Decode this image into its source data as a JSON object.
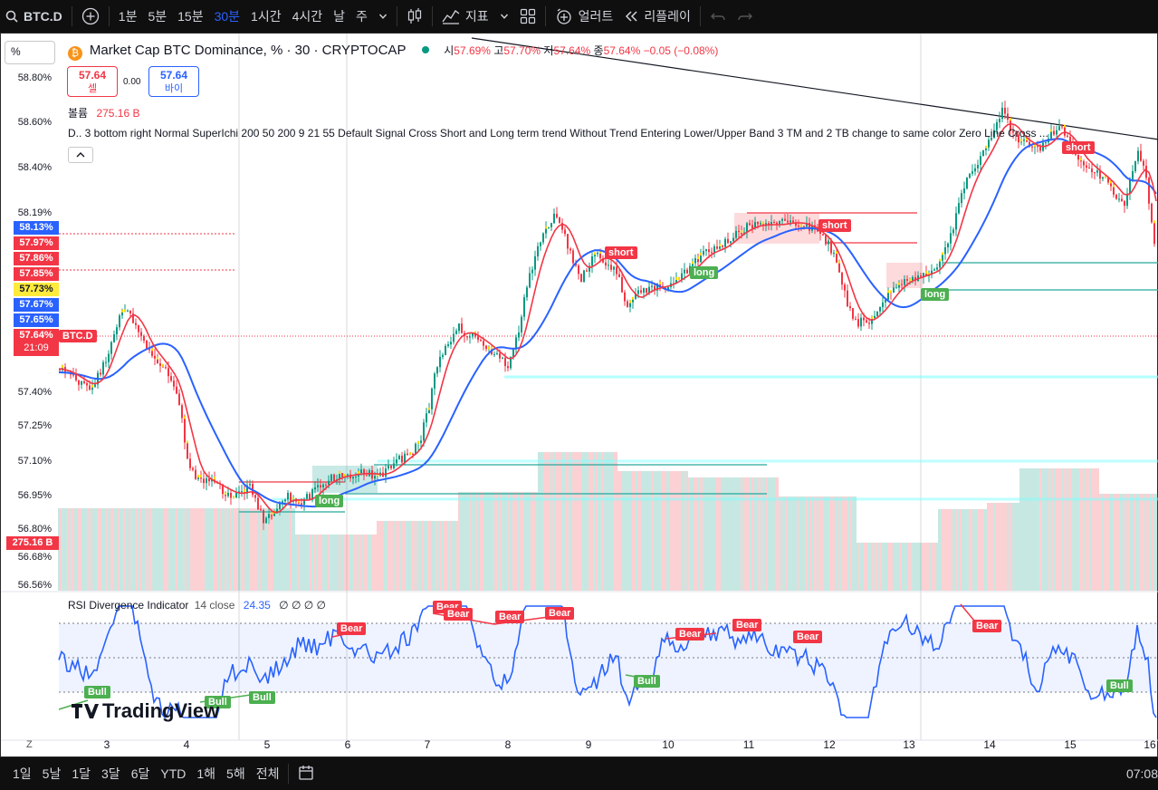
{
  "toolbar": {
    "symbol": "BTC.D",
    "intervals": [
      "1분",
      "5분",
      "15분",
      "30분",
      "1시간",
      "4시간",
      "날",
      "주"
    ],
    "active_interval": "30분",
    "indicators_label": "지표",
    "alert_label": "얼러트",
    "replay_label": "리플레이"
  },
  "legend": {
    "title": "Market Cap BTC Dominance, % · 30 · CRYPTOCAP",
    "open_label": "시",
    "open_value": "57.69%",
    "high_label": "고",
    "high_value": "57.70%",
    "low_label": "저",
    "low_value": "57.64%",
    "close_label": "종",
    "close_value": "57.64%",
    "change": "−0.05 (−0.08%)",
    "sell_price": "57.64",
    "sell_label": "셀",
    "spread": "0.00",
    "buy_price": "57.64",
    "buy_label": "바이",
    "volume_label": "볼륨",
    "volume_value": "275.16 B",
    "indicator_line": "D.. 3 bottom right Normal SuperIchi 200 50 200 9 21 55 Default Signal Cross Short and Long term trend Without Trend Entering Lower/Upper Band 3 TM and 2 TB change to same color Zero Line Cross ...",
    "symbol_search": "%"
  },
  "price_axis": {
    "ticks": [
      "58.80%",
      "58.60%",
      "58.40%",
      "58.19%",
      "57.40%",
      "57.25%",
      "57.10%",
      "56.95%",
      "56.80%",
      "56.68%",
      "56.56%"
    ],
    "tags": [
      {
        "label": "58.13%",
        "color": "#2962ff"
      },
      {
        "label": "57.97%",
        "color": "#f23645"
      },
      {
        "label": "57.86%",
        "color": "#f23645"
      },
      {
        "label": "57.85%",
        "color": "#f23645"
      },
      {
        "label": "57.73%",
        "color": "#ffeb3b"
      },
      {
        "label": "57.67%",
        "color": "#2962ff"
      },
      {
        "label": "57.65%",
        "color": "#2962ff"
      },
      {
        "label": "57.64%",
        "color": "#f23645"
      }
    ],
    "current_symbol": "BTC.D",
    "countdown": "21:09",
    "volume_tag": "275.16 B"
  },
  "signals": [
    {
      "label": "short",
      "kind": "short"
    },
    {
      "label": "long",
      "kind": "long"
    },
    {
      "label": "short",
      "kind": "short"
    },
    {
      "label": "long",
      "kind": "long"
    },
    {
      "label": "long",
      "kind": "long"
    },
    {
      "label": "short",
      "kind": "short"
    }
  ],
  "rsi": {
    "title": "RSI Divergence Indicator",
    "params": "14 close",
    "value": "24.35",
    "empties": "∅ ∅ ∅ ∅",
    "bear_labels": [
      "Bear",
      "Bear",
      "Bear",
      "Bear",
      "Bear",
      "Bear",
      "Bear",
      "Bear",
      "Bear",
      "Bear"
    ],
    "bull_labels": [
      "Bull",
      "Bull",
      "Bull",
      "Bull",
      "Bull"
    ]
  },
  "time_axis": {
    "ticks": [
      "3",
      "4",
      "5",
      "6",
      "7",
      "8",
      "9",
      "10",
      "11",
      "12",
      "13",
      "14",
      "15",
      "16"
    ]
  },
  "watermark": "TradingView",
  "bottom": {
    "ranges": [
      "1일",
      "5날",
      "1달",
      "3달",
      "6달",
      "YTD",
      "1해",
      "5해",
      "전체"
    ],
    "clock": "07:08",
    "z_label": "Z"
  },
  "colors": {
    "bull": "#089981",
    "bear": "#f23645",
    "ma_fast": "#f23645",
    "ma_slow": "#2962ff",
    "rsi_line": "#2962ff",
    "signal_short": "#f23645",
    "signal_long": "#4caf50"
  }
}
